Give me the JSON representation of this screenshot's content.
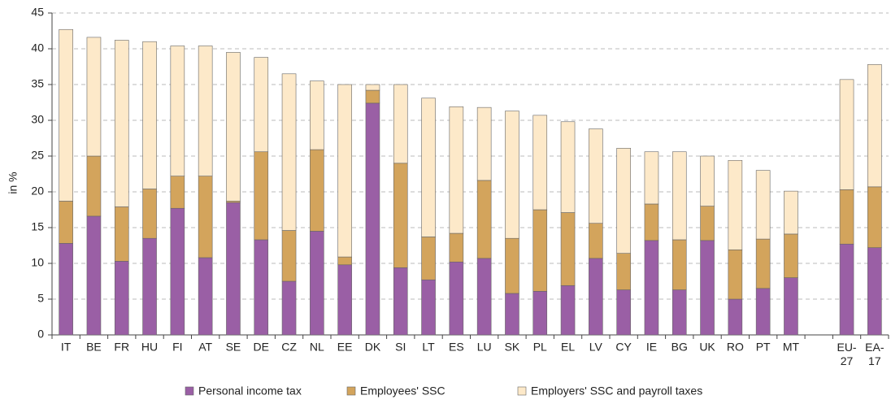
{
  "chart_data": {
    "type": "bar",
    "stacked": true,
    "y_label": "in %",
    "categories": [
      "IT",
      "BE",
      "FR",
      "HU",
      "FI",
      "AT",
      "SE",
      "DE",
      "CZ",
      "NL",
      "EE",
      "DK",
      "SI",
      "LT",
      "ES",
      "LU",
      "SK",
      "PL",
      "EL",
      "LV",
      "CY",
      "IE",
      "BG",
      "UK",
      "RO",
      "PT",
      "MT",
      null,
      "EU-27",
      "EA-17"
    ],
    "series": [
      {
        "name": "Personal income tax",
        "color": "#9a5fa5",
        "values": [
          12.8,
          16.6,
          10.3,
          13.5,
          17.7,
          10.8,
          18.5,
          13.3,
          7.5,
          14.5,
          9.8,
          32.4,
          9.4,
          7.7,
          10.2,
          10.7,
          5.8,
          6.1,
          6.9,
          10.7,
          6.3,
          13.2,
          6.3,
          13.2,
          5.0,
          6.5,
          8.0,
          null,
          12.7,
          12.2
        ]
      },
      {
        "name": "Employees' SSC",
        "color": "#d3a45c",
        "values": [
          5.9,
          8.4,
          7.6,
          6.9,
          4.5,
          11.4,
          0.2,
          12.3,
          7.1,
          11.4,
          1.1,
          1.8,
          14.6,
          6.0,
          4.0,
          10.9,
          7.7,
          11.4,
          10.2,
          4.9,
          5.1,
          5.1,
          7.0,
          4.8,
          6.9,
          6.9,
          6.1,
          null,
          7.6,
          8.5
        ]
      },
      {
        "name": "Employers' SSC and payroll taxes",
        "color": "#fde9c9",
        "values": [
          24.0,
          16.6,
          23.3,
          20.6,
          18.2,
          18.2,
          20.8,
          13.2,
          21.9,
          9.6,
          24.1,
          0.8,
          11.0,
          19.4,
          17.7,
          10.2,
          17.8,
          13.2,
          12.7,
          13.2,
          14.7,
          7.3,
          12.3,
          7.0,
          12.5,
          9.6,
          6.0,
          null,
          15.4,
          17.1
        ]
      }
    ],
    "ylim": [
      0,
      45
    ],
    "yticks": [
      0,
      5,
      10,
      15,
      20,
      25,
      30,
      35,
      40,
      45
    ],
    "grid": true
  }
}
